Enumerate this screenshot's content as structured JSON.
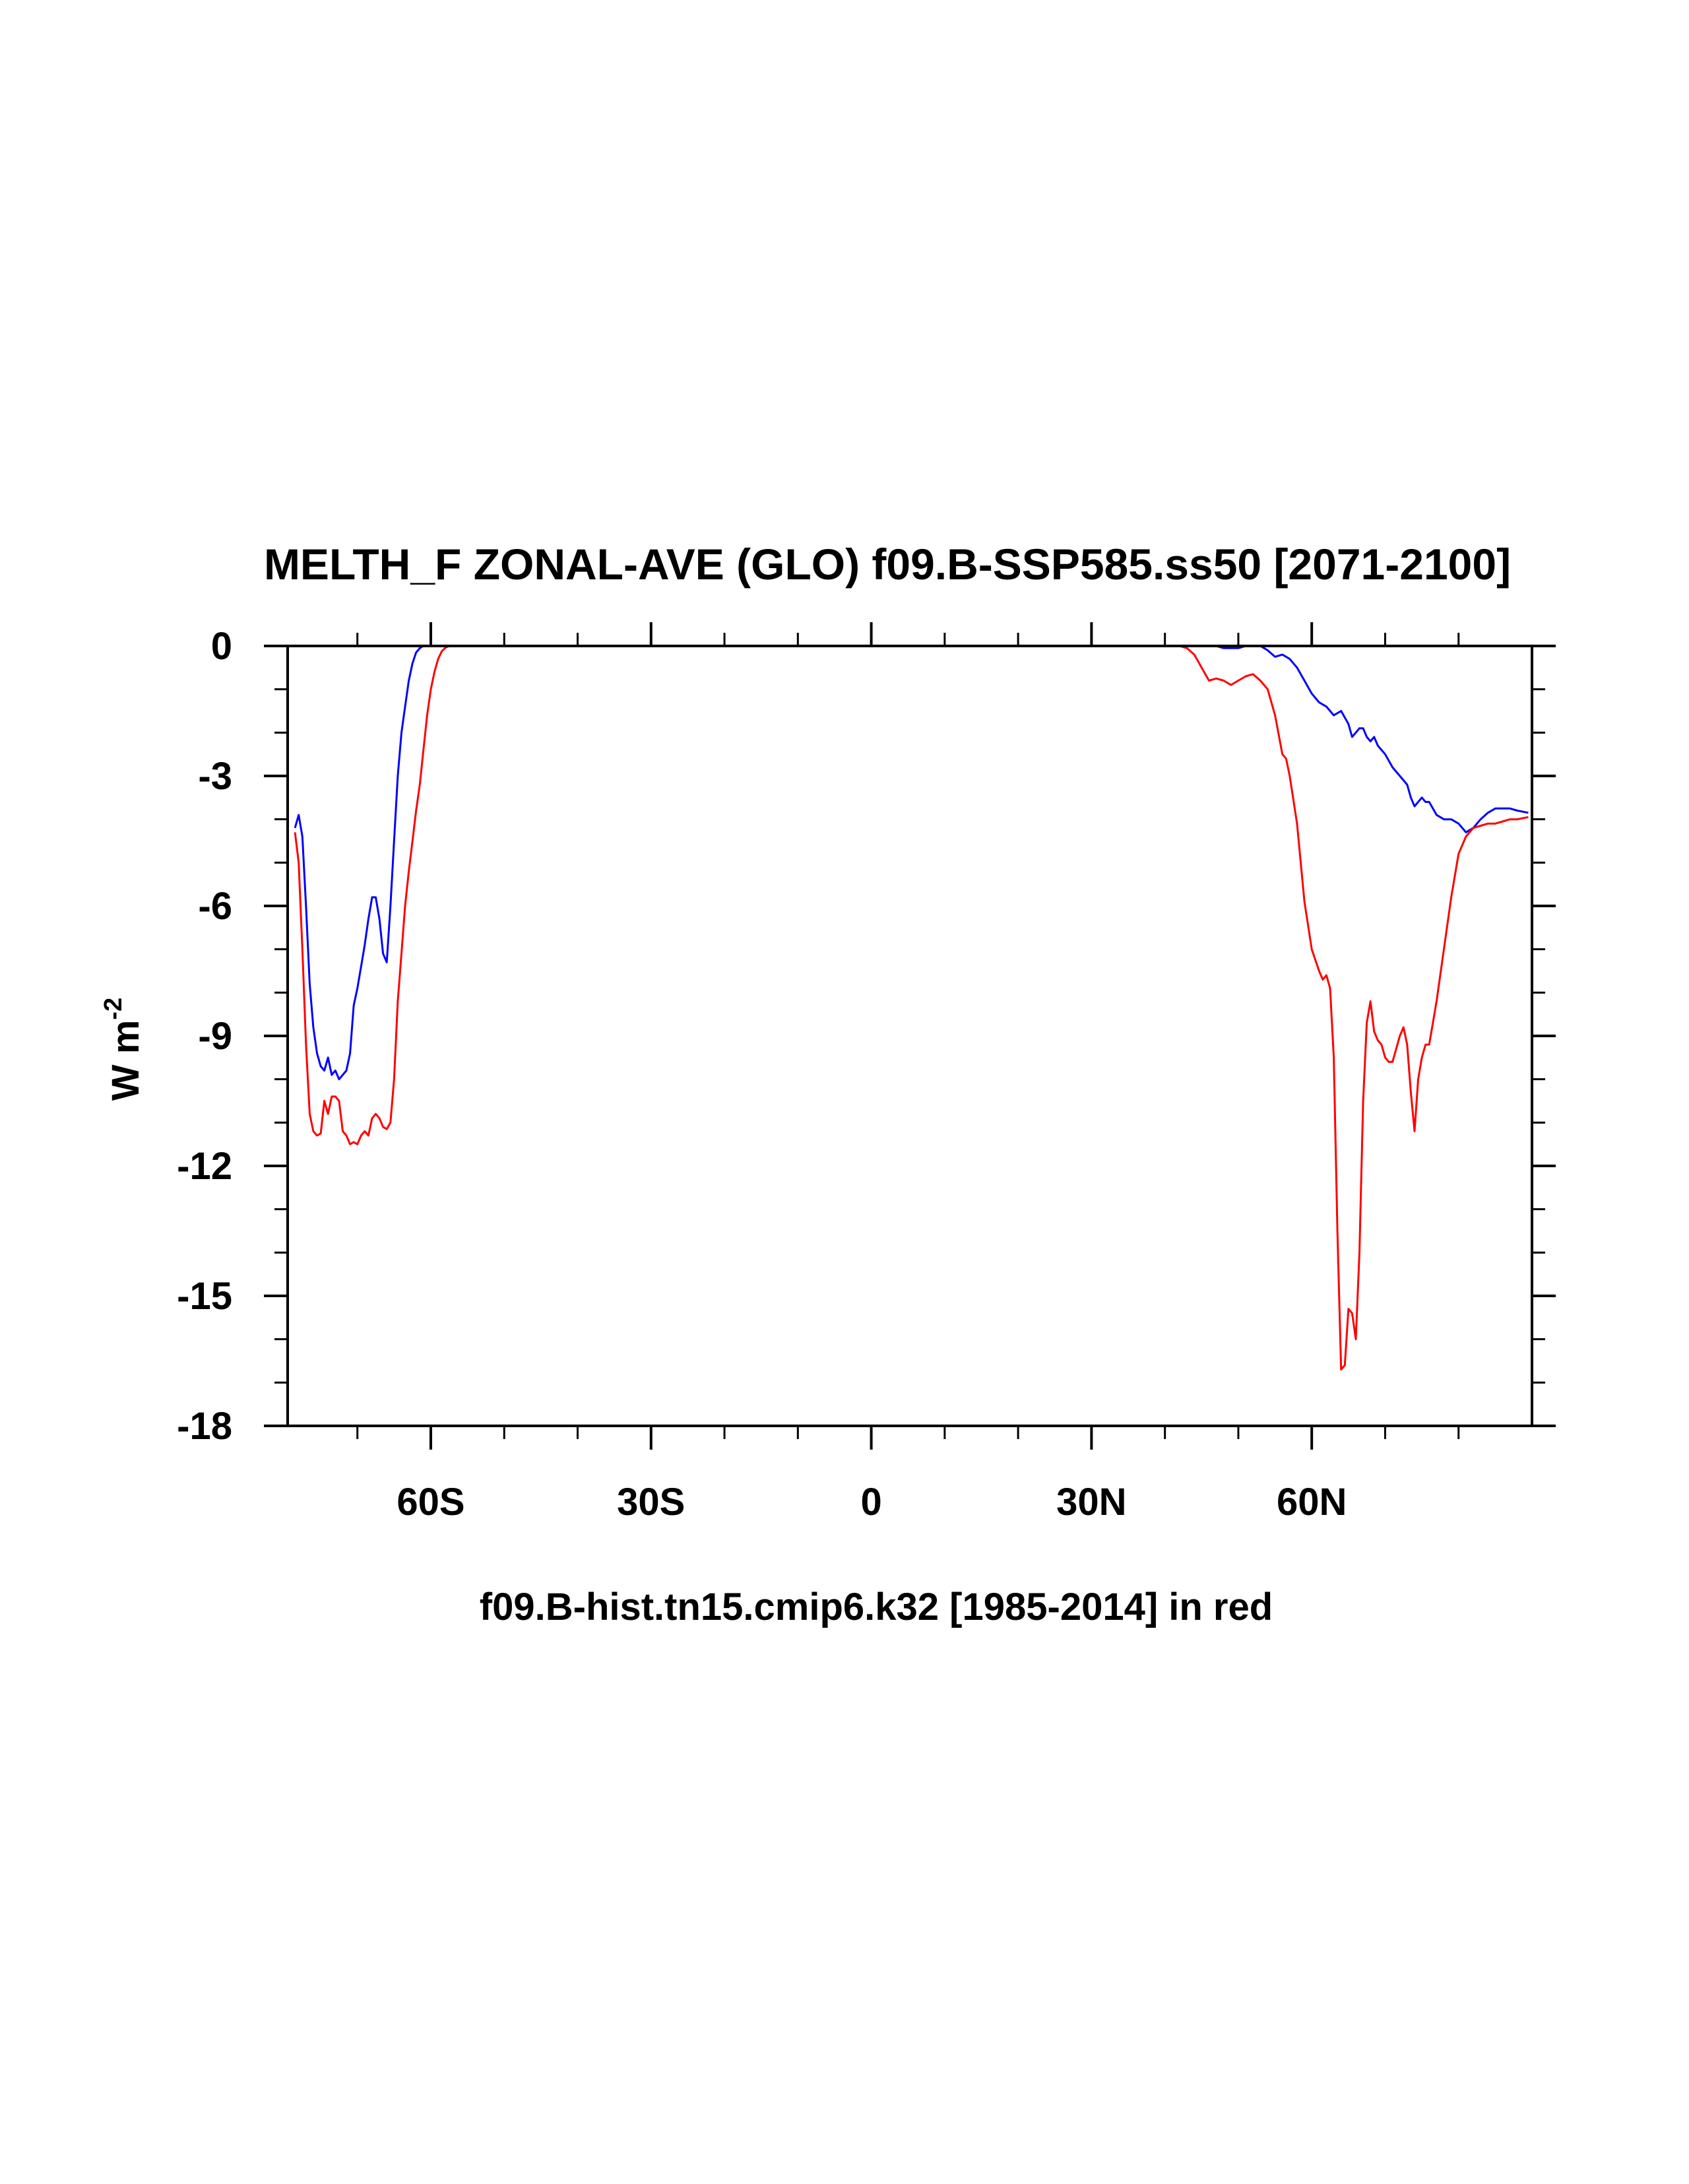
{
  "chart_data": {
    "type": "line",
    "title": "MELTH_F ZONAL-AVE (GLO) f09.B-SSP585.ss50 [2071-2100]",
    "xlabel": "f09.B-hist.tn15.cmip6.k32 [1985-2014] in red",
    "ylabel_main": "W m",
    "ylabel_sup": "-2",
    "xlim": [
      -79.5,
      90
    ],
    "ylim": [
      -18,
      0
    ],
    "x_ticks": [
      {
        "value": -60,
        "label": "60S"
      },
      {
        "value": -30,
        "label": "30S"
      },
      {
        "value": 0,
        "label": "0"
      },
      {
        "value": 30,
        "label": "30N"
      },
      {
        "value": 60,
        "label": "60N"
      }
    ],
    "x_minor_ticks": [
      -70,
      -50,
      -40,
      -20,
      -10,
      10,
      20,
      40,
      50,
      70,
      80
    ],
    "y_ticks": [
      {
        "value": 0,
        "label": "0"
      },
      {
        "value": -3,
        "label": "-3"
      },
      {
        "value": -6,
        "label": "-6"
      },
      {
        "value": -9,
        "label": "-9"
      },
      {
        "value": -12,
        "label": "-12"
      },
      {
        "value": -15,
        "label": "-15"
      },
      {
        "value": -18,
        "label": "-18"
      }
    ],
    "y_minor_ticks": [
      -1,
      -2,
      -4,
      -5,
      -7,
      -8,
      -10,
      -11,
      -13,
      -14,
      -16,
      -17
    ],
    "grid": false,
    "series": [
      {
        "color": "#0000ff",
        "points": [
          [
            -78.5,
            -4.2
          ],
          [
            -78.0,
            -3.9
          ],
          [
            -77.5,
            -4.4
          ],
          [
            -77.0,
            -6.0
          ],
          [
            -76.5,
            -7.8
          ],
          [
            -76.0,
            -8.8
          ],
          [
            -75.5,
            -9.4
          ],
          [
            -75.0,
            -9.7
          ],
          [
            -74.5,
            -9.8
          ],
          [
            -74.0,
            -9.5
          ],
          [
            -73.5,
            -9.9
          ],
          [
            -73.0,
            -9.8
          ],
          [
            -72.5,
            -10.0
          ],
          [
            -72.0,
            -9.9
          ],
          [
            -71.5,
            -9.8
          ],
          [
            -71.0,
            -9.4
          ],
          [
            -70.5,
            -8.3
          ],
          [
            -70.0,
            -7.9
          ],
          [
            -69.5,
            -7.4
          ],
          [
            -69.0,
            -6.9
          ],
          [
            -68.5,
            -6.3
          ],
          [
            -68.0,
            -5.8
          ],
          [
            -67.5,
            -5.8
          ],
          [
            -67.0,
            -6.3
          ],
          [
            -66.5,
            -7.1
          ],
          [
            -66.0,
            -7.3
          ],
          [
            -65.5,
            -6.0
          ],
          [
            -65.0,
            -4.5
          ],
          [
            -64.5,
            -3.0
          ],
          [
            -64.0,
            -2.0
          ],
          [
            -63.5,
            -1.4
          ],
          [
            -63.0,
            -0.8
          ],
          [
            -62.5,
            -0.4
          ],
          [
            -62.0,
            -0.15
          ],
          [
            -61.5,
            -0.05
          ],
          [
            -61.0,
            0.0
          ],
          [
            -55.0,
            0.0
          ],
          [
            0.0,
            0.0
          ],
          [
            40.0,
            0.0
          ],
          [
            47.0,
            0.0
          ],
          [
            48.0,
            -0.05
          ],
          [
            50.0,
            -0.05
          ],
          [
            51.0,
            0.0
          ],
          [
            53.0,
            0.0
          ],
          [
            54.0,
            -0.1
          ],
          [
            55.0,
            -0.25
          ],
          [
            56.0,
            -0.2
          ],
          [
            57.0,
            -0.3
          ],
          [
            58.0,
            -0.5
          ],
          [
            59.0,
            -0.8
          ],
          [
            60.0,
            -1.1
          ],
          [
            61.0,
            -1.3
          ],
          [
            61.5,
            -1.35
          ],
          [
            62.0,
            -1.4
          ],
          [
            63.0,
            -1.6
          ],
          [
            64.0,
            -1.5
          ],
          [
            65.0,
            -1.8
          ],
          [
            65.5,
            -2.1
          ],
          [
            66.0,
            -2.0
          ],
          [
            66.5,
            -1.9
          ],
          [
            67.0,
            -1.9
          ],
          [
            67.5,
            -2.1
          ],
          [
            68.0,
            -2.2
          ],
          [
            68.5,
            -2.1
          ],
          [
            69.0,
            -2.3
          ],
          [
            70.0,
            -2.5
          ],
          [
            71.0,
            -2.8
          ],
          [
            72.0,
            -3.0
          ],
          [
            73.0,
            -3.2
          ],
          [
            73.5,
            -3.5
          ],
          [
            74.0,
            -3.7
          ],
          [
            74.5,
            -3.6
          ],
          [
            75.0,
            -3.5
          ],
          [
            75.5,
            -3.6
          ],
          [
            76.0,
            -3.6
          ],
          [
            77.0,
            -3.9
          ],
          [
            78.0,
            -4.0
          ],
          [
            79.0,
            -4.0
          ],
          [
            80.0,
            -4.1
          ],
          [
            81.0,
            -4.3
          ],
          [
            82.0,
            -4.2
          ],
          [
            83.0,
            -4.0
          ],
          [
            84.0,
            -3.85
          ],
          [
            85.0,
            -3.75
          ],
          [
            86.0,
            -3.75
          ],
          [
            87.0,
            -3.75
          ],
          [
            88.0,
            -3.8
          ],
          [
            89.5,
            -3.85
          ]
        ]
      },
      {
        "color": "#ff0000",
        "points": [
          [
            -78.5,
            -4.3
          ],
          [
            -78.0,
            -5.0
          ],
          [
            -77.5,
            -7.0
          ],
          [
            -77.0,
            -9.2
          ],
          [
            -76.5,
            -10.8
          ],
          [
            -76.0,
            -11.2
          ],
          [
            -75.5,
            -11.3
          ],
          [
            -75.0,
            -11.25
          ],
          [
            -74.5,
            -10.5
          ],
          [
            -74.0,
            -10.8
          ],
          [
            -73.5,
            -10.4
          ],
          [
            -73.0,
            -10.4
          ],
          [
            -72.5,
            -10.5
          ],
          [
            -72.0,
            -11.2
          ],
          [
            -71.5,
            -11.3
          ],
          [
            -71.0,
            -11.5
          ],
          [
            -70.5,
            -11.45
          ],
          [
            -70.0,
            -11.5
          ],
          [
            -69.5,
            -11.3
          ],
          [
            -69.0,
            -11.2
          ],
          [
            -68.5,
            -11.3
          ],
          [
            -68.0,
            -10.9
          ],
          [
            -67.5,
            -10.8
          ],
          [
            -67.0,
            -10.9
          ],
          [
            -66.5,
            -11.1
          ],
          [
            -66.0,
            -11.15
          ],
          [
            -65.5,
            -11.0
          ],
          [
            -65.0,
            -10.0
          ],
          [
            -64.5,
            -8.2
          ],
          [
            -64.0,
            -7.1
          ],
          [
            -63.5,
            -6.0
          ],
          [
            -63.0,
            -5.2
          ],
          [
            -62.5,
            -4.5
          ],
          [
            -62.0,
            -3.8
          ],
          [
            -61.5,
            -3.2
          ],
          [
            -61.0,
            -2.4
          ],
          [
            -60.5,
            -1.6
          ],
          [
            -60.0,
            -1.0
          ],
          [
            -59.5,
            -0.6
          ],
          [
            -59.0,
            -0.3
          ],
          [
            -58.5,
            -0.12
          ],
          [
            -58.0,
            -0.04
          ],
          [
            -57.5,
            0.0
          ],
          [
            -55.0,
            0.0
          ],
          [
            0.0,
            0.0
          ],
          [
            42.0,
            0.0
          ],
          [
            43.0,
            -0.05
          ],
          [
            44.0,
            -0.2
          ],
          [
            45.0,
            -0.5
          ],
          [
            46.0,
            -0.8
          ],
          [
            47.0,
            -0.75
          ],
          [
            48.0,
            -0.8
          ],
          [
            49.0,
            -0.9
          ],
          [
            50.0,
            -0.8
          ],
          [
            51.0,
            -0.7
          ],
          [
            52.0,
            -0.65
          ],
          [
            53.0,
            -0.8
          ],
          [
            54.0,
            -1.0
          ],
          [
            55.0,
            -1.6
          ],
          [
            56.0,
            -2.5
          ],
          [
            56.5,
            -2.6
          ],
          [
            57.0,
            -3.0
          ],
          [
            58.0,
            -4.1
          ],
          [
            59.0,
            -5.9
          ],
          [
            60.0,
            -7.0
          ],
          [
            61.0,
            -7.5
          ],
          [
            61.5,
            -7.7
          ],
          [
            62.0,
            -7.6
          ],
          [
            62.5,
            -7.9
          ],
          [
            63.0,
            -9.5
          ],
          [
            63.5,
            -13.5
          ],
          [
            64.0,
            -16.7
          ],
          [
            64.5,
            -16.6
          ],
          [
            65.0,
            -15.3
          ],
          [
            65.5,
            -15.4
          ],
          [
            66.0,
            -16.0
          ],
          [
            66.5,
            -14.0
          ],
          [
            67.0,
            -10.5
          ],
          [
            67.5,
            -8.7
          ],
          [
            68.0,
            -8.2
          ],
          [
            68.5,
            -8.9
          ],
          [
            69.0,
            -9.1
          ],
          [
            69.5,
            -9.2
          ],
          [
            70.0,
            -9.5
          ],
          [
            70.5,
            -9.6
          ],
          [
            71.0,
            -9.6
          ],
          [
            71.5,
            -9.3
          ],
          [
            72.0,
            -9.0
          ],
          [
            72.5,
            -8.8
          ],
          [
            73.0,
            -9.2
          ],
          [
            73.5,
            -10.3
          ],
          [
            74.0,
            -11.2
          ],
          [
            74.5,
            -10.0
          ],
          [
            75.0,
            -9.5
          ],
          [
            75.5,
            -9.2
          ],
          [
            76.0,
            -9.2
          ],
          [
            77.0,
            -8.2
          ],
          [
            78.0,
            -7.0
          ],
          [
            79.0,
            -5.8
          ],
          [
            80.0,
            -4.8
          ],
          [
            81.0,
            -4.4
          ],
          [
            82.0,
            -4.2
          ],
          [
            83.0,
            -4.15
          ],
          [
            84.0,
            -4.1
          ],
          [
            85.0,
            -4.1
          ],
          [
            86.0,
            -4.05
          ],
          [
            87.0,
            -4.0
          ],
          [
            88.0,
            -4.0
          ],
          [
            89.5,
            -3.95
          ]
        ]
      }
    ]
  }
}
